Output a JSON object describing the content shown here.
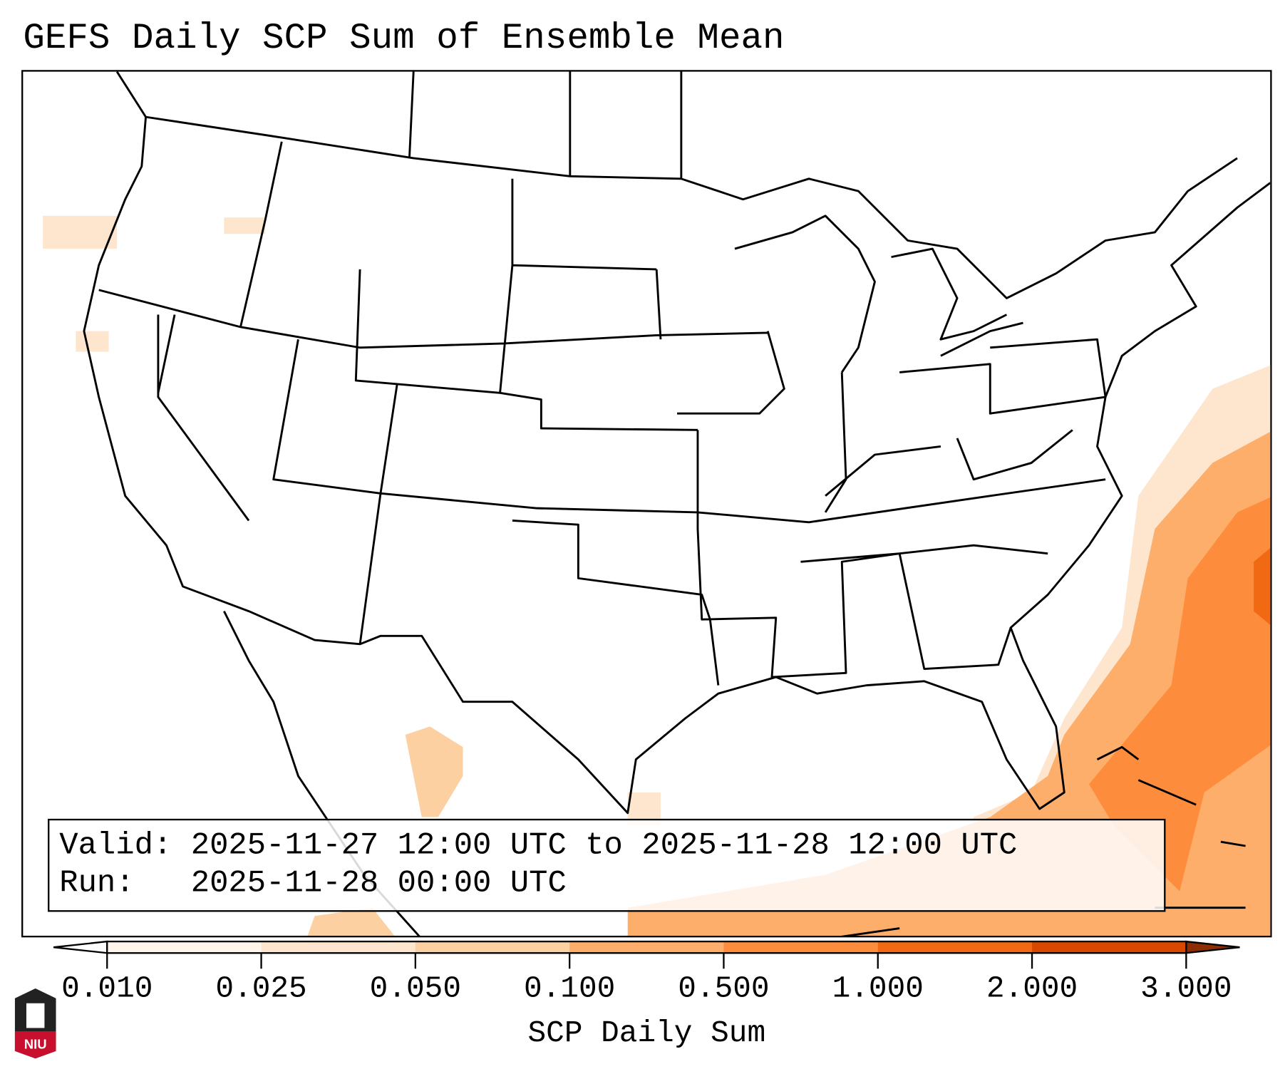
{
  "title": "GEFS Daily SCP Sum of Ensemble Mean",
  "info": {
    "valid_line": "Valid: 2025-11-27 12:00 UTC to 2025-11-28 12:00 UTC",
    "run_line": "Run:   2025-11-28 00:00 UTC"
  },
  "colorbar": {
    "label": "SCP Daily Sum",
    "ticks": [
      "0.010",
      "0.025",
      "0.050",
      "0.100",
      "0.500",
      "1.000",
      "2.000",
      "3.000"
    ],
    "colors": [
      "#fff5eb",
      "#fee6ce",
      "#fdd0a2",
      "#fdae6b",
      "#fd8d3c",
      "#f16913",
      "#d94801"
    ],
    "over_color": "#8c2d04",
    "under_color": "#ffffff"
  },
  "logo": {
    "text": "NIU"
  }
}
